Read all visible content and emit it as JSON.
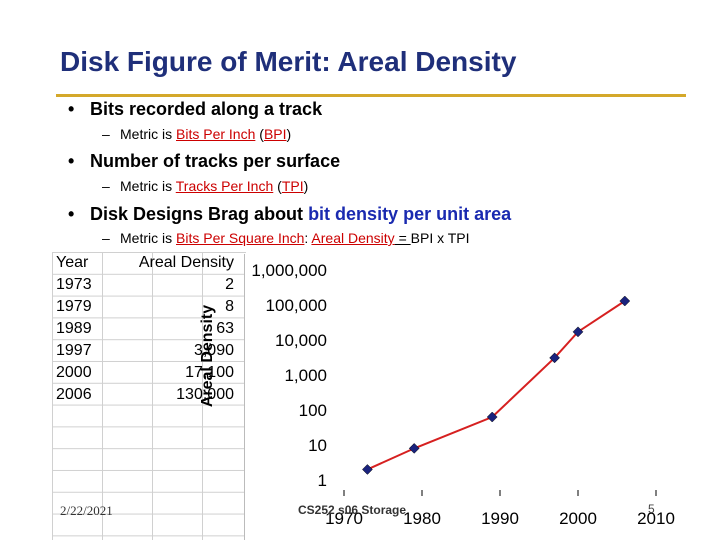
{
  "slide": {
    "title": "Disk Figure of Merit: Areal Density",
    "bullets": [
      {
        "text": "Bits recorded along a track"
      },
      {
        "text": "Number of tracks per surface"
      },
      {
        "pre": "Disk Designs Brag about ",
        "emph": "bit density per unit area"
      }
    ],
    "subs": [
      {
        "pre": "Metric is ",
        "link": "Bits Per Inch",
        "mid": " (",
        "abbr": "BPI",
        "post": ")"
      },
      {
        "pre": "Metric is ",
        "link": "Tracks Per Inch",
        "mid": " (",
        "abbr": "TPI",
        "post": ")"
      },
      {
        "pre": "Metric is  ",
        "link": "Bits Per Square Inch",
        "mid": ": ",
        "link2": "Areal Density",
        "eq": " = ",
        "post": "BPI x TPI"
      }
    ],
    "footer": {
      "date": "2/22/2021",
      "course": "CS252 s06 Storage",
      "page": "5"
    }
  },
  "table": {
    "headers": [
      "Year",
      "Areal Density"
    ],
    "rows": [
      [
        "1973",
        "2"
      ],
      [
        "1979",
        "8"
      ],
      [
        "1989",
        "63"
      ],
      [
        "1997",
        "3,090"
      ],
      [
        "2000",
        "17,100"
      ],
      [
        "2006",
        "130,000"
      ]
    ]
  },
  "chart_data": {
    "type": "line",
    "title": "",
    "xlabel": "",
    "ylabel": "Areal Density",
    "yscale": "log",
    "x": [
      1973,
      1979,
      1989,
      1997,
      2000,
      2006
    ],
    "series": [
      {
        "values": [
          2,
          8,
          63,
          3090,
          17100,
          130000
        ]
      }
    ],
    "xlim": [
      1970,
      2010
    ],
    "ylim": [
      1,
      1000000
    ],
    "xticks": [
      "1970",
      "1980",
      "1990",
      "2000",
      "2010"
    ],
    "yticks": [
      "1",
      "10",
      "100",
      "1,000",
      "10,000",
      "100,000",
      "1,000,000"
    ],
    "line_color": "#d62020",
    "marker_color": "#1a237e"
  }
}
